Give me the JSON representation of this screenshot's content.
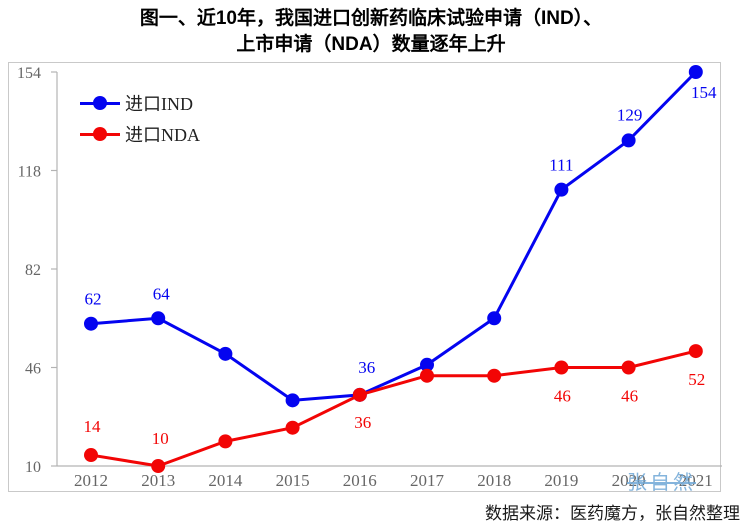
{
  "title": {
    "line1": "图一、近10年，我国进口创新药临床试验申请（IND）、",
    "line2": "上市申请（NDA）数量逐年上升"
  },
  "legend": {
    "items": [
      {
        "label": "进口IND",
        "color": "#0404f0"
      },
      {
        "label": "进口NDA",
        "color": "#f20505"
      }
    ]
  },
  "footer": {
    "source": "数据来源：医药魔方，张自然整理"
  },
  "watermark": "张自然",
  "colors": {
    "ind_blue": "#0404f0",
    "nda_red": "#f20505",
    "axis_gray": "#b3b3b3",
    "tick_label_gray": "#666666",
    "frame_gray": "#c9c9c9",
    "watermark_blue": "#6fa8d6"
  },
  "chart_data": {
    "type": "line",
    "title": "图一、近10年，我国进口创新药临床试验申请（IND）、上市申请（NDA）数量逐年上升",
    "categories": [
      "2012",
      "2013",
      "2014",
      "2015",
      "2016",
      "2017",
      "2018",
      "2019",
      "2020",
      "2021"
    ],
    "series": [
      {
        "name": "进口IND",
        "color": "#0404f0",
        "values": [
          62,
          64,
          51,
          34,
          36,
          47,
          64,
          111,
          129,
          154
        ],
        "point_labels": [
          "62",
          "64",
          null,
          null,
          "36",
          null,
          null,
          "111",
          "129",
          "154"
        ]
      },
      {
        "name": "进口NDA",
        "color": "#f20505",
        "values": [
          14,
          10,
          19,
          24,
          36,
          43,
          43,
          46,
          46,
          52
        ],
        "point_labels": [
          "14",
          "10",
          null,
          null,
          "36",
          null,
          null,
          "46",
          "46",
          "52"
        ]
      }
    ],
    "xlabel": "",
    "ylabel": "",
    "y_ticks": [
      10,
      46,
      82,
      118,
      154
    ],
    "ylim": [
      10,
      154
    ],
    "grid": false,
    "legend_position": "top-left",
    "source_note": "数据来源：医药魔方，张自然整理"
  }
}
